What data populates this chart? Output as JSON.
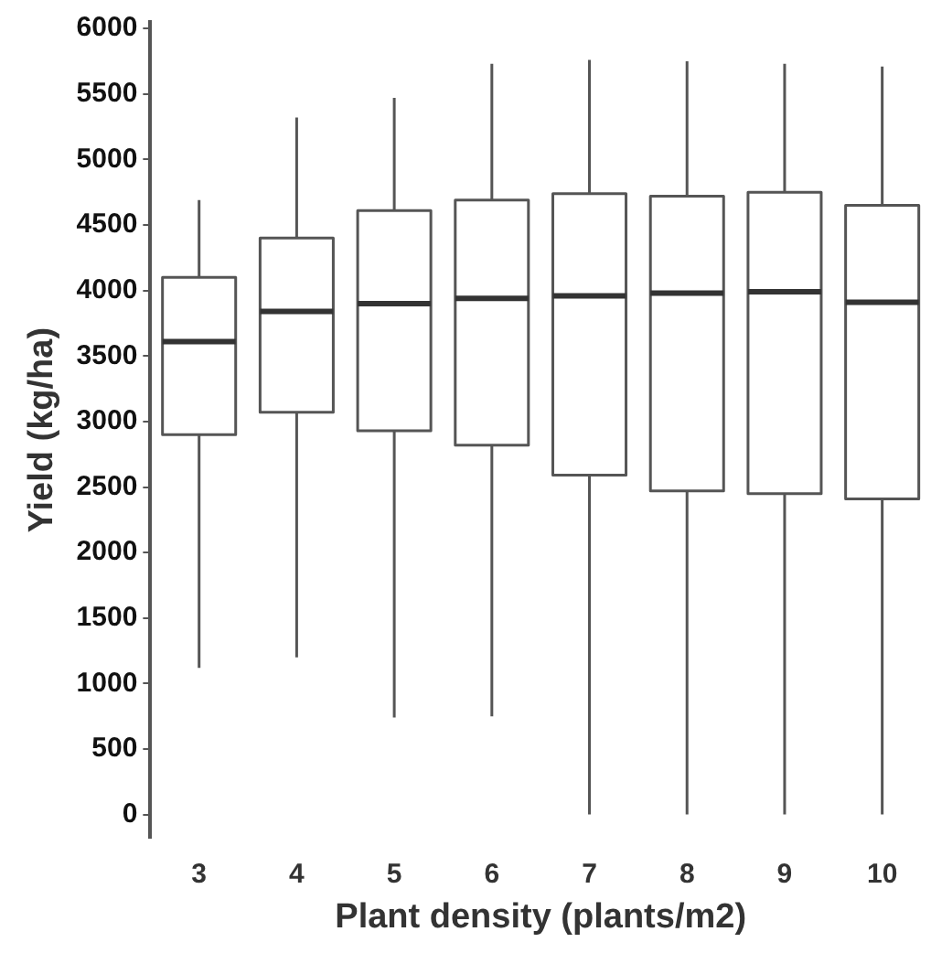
{
  "chart_data": {
    "type": "box",
    "xlabel": "Plant density (plants/m2)",
    "ylabel": "Yield (kg/ha)",
    "categories": [
      "3",
      "4",
      "5",
      "6",
      "7",
      "8",
      "9",
      "10"
    ],
    "color": "#555555",
    "boxes": [
      {
        "low": 1120,
        "q1": 2900,
        "median": 3610,
        "q3": 4100,
        "high": 4690
      },
      {
        "low": 1200,
        "q1": 3070,
        "median": 3840,
        "q3": 4400,
        "high": 5320
      },
      {
        "low": 740,
        "q1": 2930,
        "median": 3900,
        "q3": 4610,
        "high": 5470
      },
      {
        "low": 750,
        "q1": 2820,
        "median": 3940,
        "q3": 4690,
        "high": 5730
      },
      {
        "low": 0,
        "q1": 2590,
        "median": 3960,
        "q3": 4740,
        "high": 5760
      },
      {
        "low": 0,
        "q1": 2470,
        "median": 3980,
        "q3": 4720,
        "high": 5750
      },
      {
        "low": 0,
        "q1": 2450,
        "median": 3990,
        "q3": 4750,
        "high": 5730
      },
      {
        "low": 0,
        "q1": 2410,
        "median": 3910,
        "q3": 4650,
        "high": 5710
      }
    ],
    "ylim": [
      -180,
      6050
    ],
    "yticks": [
      0,
      500,
      1000,
      1500,
      2000,
      2500,
      3000,
      3500,
      4000,
      4500,
      5000,
      5500,
      6000
    ]
  }
}
